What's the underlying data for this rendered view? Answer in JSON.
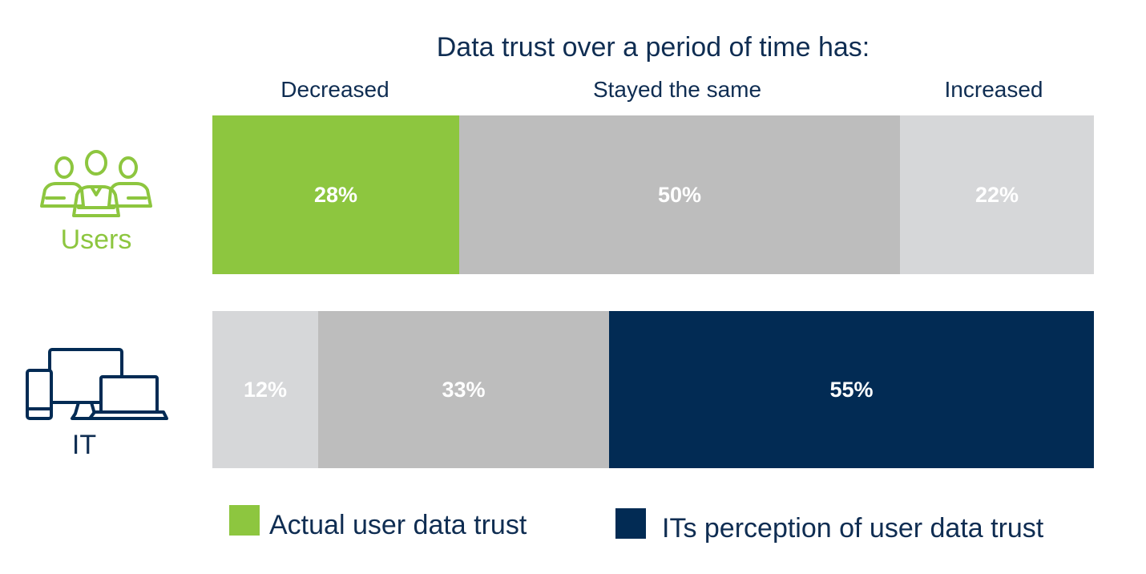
{
  "chart_data": {
    "type": "bar",
    "orientation": "horizontal",
    "stacked": true,
    "percent_stacked": true,
    "title": "Data trust over a period of time has:",
    "categories": [
      "Decreased",
      "Stayed the same",
      "Increased"
    ],
    "series": [
      {
        "label": "Users",
        "values": [
          28,
          50,
          22
        ],
        "value_labels": [
          "28%",
          "50%",
          "22%"
        ]
      },
      {
        "label": "IT",
        "values": [
          12,
          33,
          55
        ],
        "value_labels": [
          "12%",
          "33%",
          "55%"
        ]
      }
    ],
    "legend": [
      {
        "label": "Actual user data trust",
        "color": "#8dc63f"
      },
      {
        "label": "ITs perception of user data trust",
        "color": "#022b54"
      }
    ],
    "legend_position": "bottom",
    "grid": false
  },
  "row_icons": [
    "users-icon",
    "devices-icon"
  ],
  "colors": {
    "users_accent": "#8dc63f",
    "it_accent": "#022b54",
    "stayed_same": "#bdbdbd",
    "light_gray": "#d6d7d9",
    "text_navy": "#0f2d52"
  }
}
